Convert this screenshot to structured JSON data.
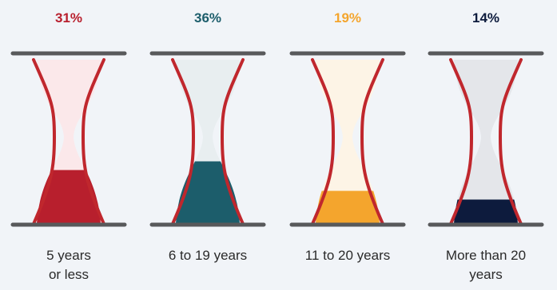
{
  "chart_data": {
    "type": "bar",
    "categories": [
      "5 years or less",
      "6 to 19 years",
      "11 to 20 years",
      "More than 20 years"
    ],
    "values": [
      31,
      36,
      19,
      14
    ],
    "value_labels": [
      "31%",
      "36%",
      "19%",
      "14%"
    ],
    "label_lines": [
      [
        "5 years",
        "or less"
      ],
      [
        "6 to 19 years"
      ],
      [
        "11 to 20 years"
      ],
      [
        "More than 20",
        "years"
      ]
    ],
    "unit": "%",
    "ylim": [
      0,
      100
    ],
    "colors": [
      "#b81f2d",
      "#1c5d6b",
      "#f4a52d",
      "#0d1b3d"
    ],
    "glass_tints": [
      "#fbe8ea",
      "#e8eef0",
      "#fdf4e6",
      "#e4e6ea"
    ],
    "frame_color": "#c0272d",
    "bar_color": "#58595b",
    "grid": false,
    "legend": "none"
  }
}
